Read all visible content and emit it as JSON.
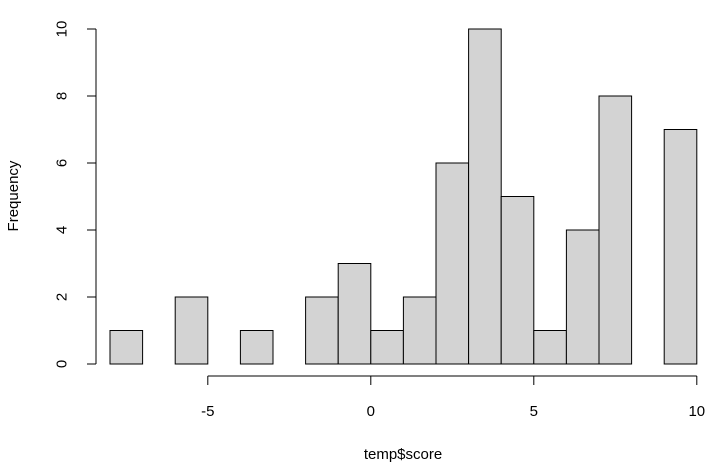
{
  "chart_data": {
    "type": "bar",
    "subtype": "histogram",
    "xlabel": "temp$score",
    "ylabel": "Frequency",
    "bin_width": 1,
    "bins": [
      {
        "start": -8,
        "end": -7,
        "count": 1
      },
      {
        "start": -7,
        "end": -6,
        "count": 0
      },
      {
        "start": -6,
        "end": -5,
        "count": 2
      },
      {
        "start": -5,
        "end": -4,
        "count": 0
      },
      {
        "start": -4,
        "end": -3,
        "count": 1
      },
      {
        "start": -3,
        "end": -2,
        "count": 0
      },
      {
        "start": -2,
        "end": -1,
        "count": 2
      },
      {
        "start": -1,
        "end": 0,
        "count": 3
      },
      {
        "start": 0,
        "end": 1,
        "count": 1
      },
      {
        "start": 1,
        "end": 2,
        "count": 2
      },
      {
        "start": 2,
        "end": 3,
        "count": 6
      },
      {
        "start": 3,
        "end": 4,
        "count": 10
      },
      {
        "start": 4,
        "end": 5,
        "count": 5
      },
      {
        "start": 5,
        "end": 6,
        "count": 1
      },
      {
        "start": 6,
        "end": 7,
        "count": 4
      },
      {
        "start": 7,
        "end": 8,
        "count": 8
      },
      {
        "start": 8,
        "end": 9,
        "count": 0
      },
      {
        "start": 9,
        "end": 10,
        "count": 7
      }
    ],
    "xlim": [
      -8,
      10
    ],
    "ylim": [
      0,
      10
    ],
    "x_ticks": [
      "-5",
      "0",
      "5",
      "10"
    ],
    "y_ticks": [
      "0",
      "2",
      "4",
      "6",
      "8",
      "10"
    ],
    "bar_fill": "#d3d3d3",
    "bar_stroke": "#000000",
    "grid": false,
    "legend": "none"
  }
}
